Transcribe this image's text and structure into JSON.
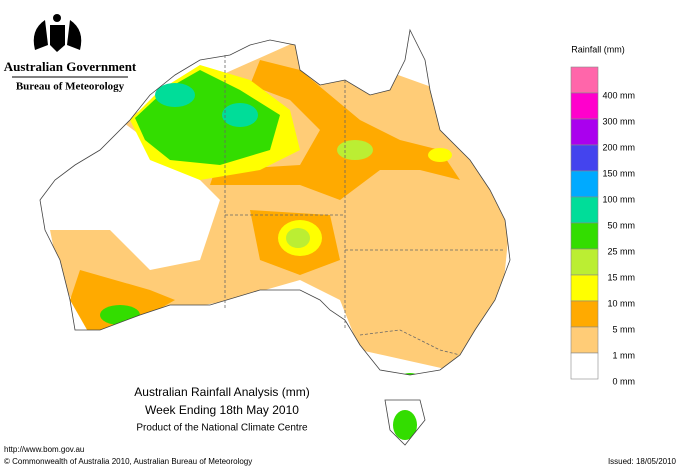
{
  "header": {
    "government": "Australian Government",
    "bureau": "Bureau of Meteorology"
  },
  "legend": {
    "title": "Rainfall (mm)",
    "colors": [
      "#ff66aa",
      "#ff00cc",
      "#aa00ee",
      "#4444ee",
      "#00aaff",
      "#00dd99",
      "#33dd00",
      "#bbee33",
      "#ffff00",
      "#ffaa00",
      "#ffcc77",
      "#ffffff"
    ],
    "labels": [
      "400 mm",
      "300 mm",
      "200 mm",
      "150 mm",
      "100 mm",
      "50 mm",
      "25 mm",
      "15 mm",
      "10 mm",
      "5 mm",
      "1 mm",
      "0 mm"
    ]
  },
  "title": {
    "line1": "Australian Rainfall Analysis (mm)",
    "line2": "Week Ending 18th May 2010",
    "line3": "Product of the National Climate Centre"
  },
  "footer": {
    "url": "http://www.bom.gov.au",
    "copyright": "© Commonwealth of Australia 2010, Australian Bureau of Meteorology",
    "issued": "Issued: 18/05/2010"
  }
}
